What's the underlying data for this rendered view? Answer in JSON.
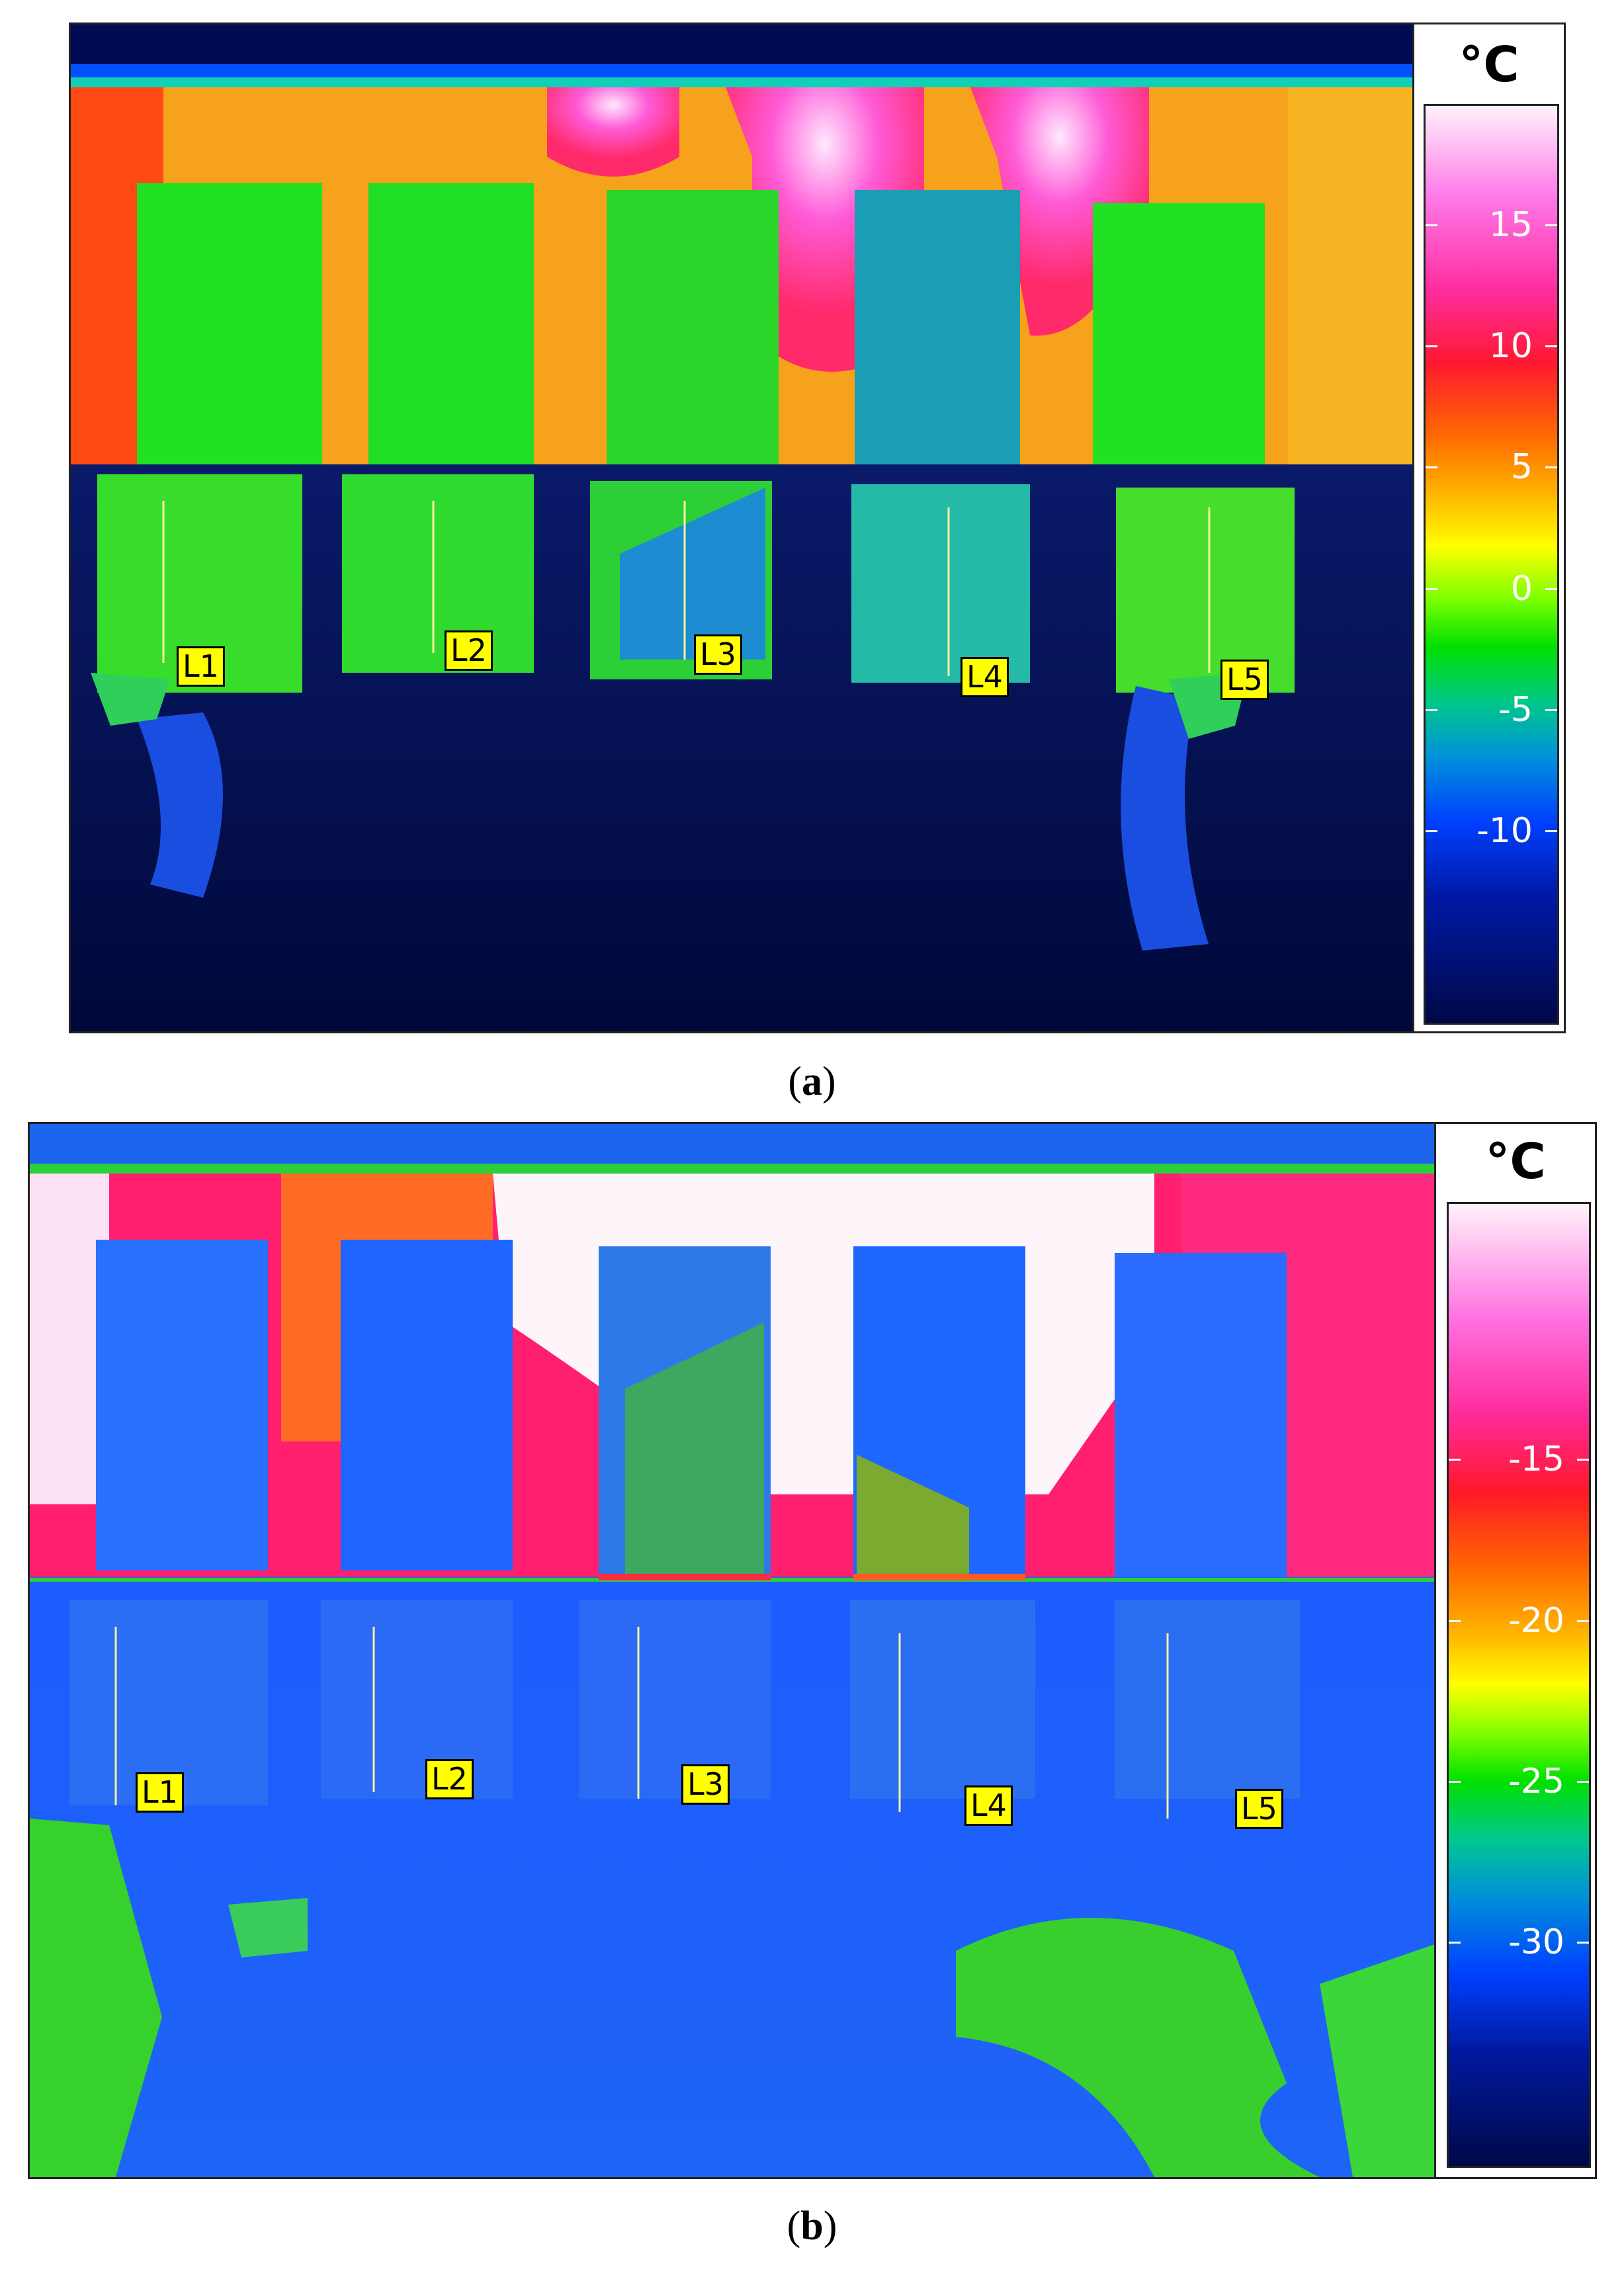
{
  "panels": [
    {
      "id": "a",
      "caption_open": "(",
      "caption_letter": "a",
      "caption_close": ")",
      "unit": "°C",
      "scale_ticks": [
        "15",
        "10",
        "5",
        "0",
        "-5",
        "-10"
      ],
      "scale_min": -18,
      "scale_max": 20,
      "tick_values": [
        15,
        10,
        5,
        0,
        -5,
        -10
      ],
      "markers": [
        "L1",
        "L2",
        "L3",
        "L4",
        "L5"
      ],
      "colors": {
        "background_top": "#ff6a00",
        "wall": "#f8a020",
        "hot": "#ff40d0",
        "blocks_upper": "#22e022",
        "blocks_lower": "#33dd33",
        "floor": "#00105a",
        "block4": "#1c9ab0"
      }
    },
    {
      "id": "b",
      "caption_open": "(",
      "caption_letter": "b",
      "caption_close": ")",
      "unit": "°C",
      "scale_ticks": [
        "-15",
        "-20",
        "-25",
        "-30"
      ],
      "scale_min": -37,
      "scale_max": -7,
      "tick_values": [
        -15,
        -20,
        -25,
        -30
      ],
      "markers": [
        "L1",
        "L2",
        "L3",
        "L4",
        "L5"
      ],
      "colors": {
        "wall": "#ff1f6e",
        "hot": "#fdf5fa",
        "blocks_upper": "#1e6bff",
        "floor": "#1b5cff",
        "ground": "#36d12a"
      }
    }
  ]
}
